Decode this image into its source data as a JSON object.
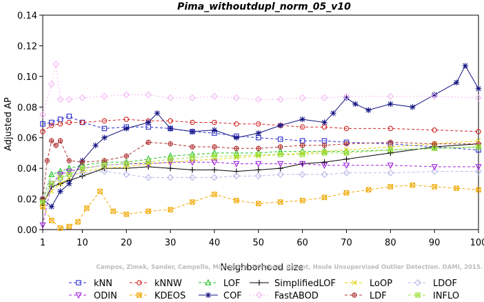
{
  "chart_data": {
    "type": "line",
    "title": "Pima_withoutdupl_norm_05_v10",
    "xlabel": "Neighborhood size",
    "ylabel": "Adjusted AP",
    "xlim": [
      1,
      100
    ],
    "ylim": [
      0.0,
      0.14
    ],
    "xticks": [
      1,
      10,
      20,
      30,
      40,
      50,
      60,
      70,
      80,
      90,
      100
    ],
    "yticks": [
      0.0,
      0.02,
      0.04,
      0.06,
      0.08,
      0.1,
      0.12,
      0.14
    ],
    "ytick_labels": [
      "0.00",
      "0.02",
      "0.04",
      "0.06",
      "0.08",
      "0.10",
      "0.12",
      "0.14"
    ],
    "grid": false,
    "legend_position": "bottom",
    "watermark": "Campos, Zimek, Sander, Campello, Micenkova, Schubert, Assent, Houle Unsupervised Outlier Detection. DAMI, 2015.",
    "series": [
      {
        "name": "kNN",
        "color": "#2a2ad0",
        "marker": "square",
        "x": [
          1,
          3,
          5,
          7,
          10,
          15,
          20,
          25,
          30,
          35,
          40,
          45,
          50,
          55,
          60,
          65,
          70,
          80,
          90,
          100
        ],
        "values": [
          0.069,
          0.07,
          0.072,
          0.074,
          0.07,
          0.066,
          0.067,
          0.067,
          0.066,
          0.064,
          0.063,
          0.061,
          0.06,
          0.059,
          0.058,
          0.058,
          0.057,
          0.056,
          0.054,
          0.052
        ]
      },
      {
        "name": "kNNW",
        "color": "#d02020",
        "marker": "circle",
        "x": [
          1,
          3,
          5,
          7,
          10,
          15,
          20,
          25,
          30,
          35,
          40,
          45,
          50,
          55,
          60,
          65,
          70,
          80,
          90,
          100
        ],
        "values": [
          0.064,
          0.068,
          0.069,
          0.07,
          0.07,
          0.071,
          0.072,
          0.071,
          0.071,
          0.07,
          0.07,
          0.069,
          0.069,
          0.068,
          0.067,
          0.067,
          0.066,
          0.066,
          0.065,
          0.064
        ]
      },
      {
        "name": "LOF",
        "color": "#20c020",
        "marker": "triangle-up",
        "x": [
          1,
          3,
          5,
          7,
          10,
          15,
          20,
          25,
          30,
          35,
          40,
          45,
          50,
          55,
          60,
          65,
          70,
          80,
          90,
          100
        ],
        "values": [
          0.02,
          0.036,
          0.038,
          0.04,
          0.042,
          0.044,
          0.044,
          0.046,
          0.048,
          0.049,
          0.05,
          0.05,
          0.05,
          0.051,
          0.051,
          0.051,
          0.051,
          0.052,
          0.053,
          0.054
        ]
      },
      {
        "name": "SimplifiedLOF",
        "color": "#000000",
        "marker": "plus",
        "x": [
          1,
          3,
          5,
          7,
          10,
          15,
          20,
          25,
          30,
          35,
          40,
          45,
          50,
          55,
          60,
          65,
          70,
          80,
          90,
          100
        ],
        "values": [
          0.016,
          0.028,
          0.03,
          0.032,
          0.035,
          0.04,
          0.04,
          0.041,
          0.04,
          0.039,
          0.039,
          0.038,
          0.039,
          0.04,
          0.043,
          0.044,
          0.046,
          0.05,
          0.054,
          0.056
        ]
      },
      {
        "name": "LoOP",
        "color": "#e0d000",
        "marker": "cross",
        "x": [
          1,
          3,
          5,
          7,
          10,
          15,
          20,
          25,
          30,
          35,
          40,
          45,
          50,
          55,
          60,
          65,
          70,
          80,
          90,
          100
        ],
        "values": [
          0.018,
          0.025,
          0.03,
          0.034,
          0.038,
          0.04,
          0.041,
          0.043,
          0.044,
          0.045,
          0.046,
          0.047,
          0.048,
          0.049,
          0.05,
          0.051,
          0.052,
          0.054,
          0.056,
          0.058
        ]
      },
      {
        "name": "LDOF",
        "color": "#b8b8e8",
        "marker": "diamond",
        "x": [
          1,
          3,
          5,
          7,
          10,
          15,
          20,
          25,
          30,
          35,
          40,
          45,
          50,
          55,
          60,
          65,
          70,
          80,
          90,
          100
        ],
        "values": [
          0.02,
          0.03,
          0.033,
          0.036,
          0.037,
          0.038,
          0.036,
          0.034,
          0.034,
          0.034,
          0.034,
          0.035,
          0.035,
          0.036,
          0.036,
          0.036,
          0.037,
          0.037,
          0.038,
          0.038
        ]
      },
      {
        "name": "ODIN",
        "color": "#a020e0",
        "marker": "triangle-down",
        "x": [
          1,
          3,
          5,
          7,
          10,
          15,
          20,
          25,
          30,
          35,
          40,
          45,
          50,
          55,
          60,
          65,
          70,
          80,
          90,
          100
        ],
        "values": [
          0.003,
          0.03,
          0.036,
          0.038,
          0.04,
          0.042,
          0.043,
          0.043,
          0.044,
          0.044,
          0.044,
          0.043,
          0.043,
          0.043,
          0.043,
          0.042,
          0.042,
          0.042,
          0.041,
          0.041
        ]
      },
      {
        "name": "KDEOS",
        "color": "#f0a800",
        "marker": "square-x",
        "x": [
          1,
          3,
          5,
          7,
          9,
          11,
          14,
          17,
          20,
          25,
          30,
          35,
          40,
          45,
          50,
          55,
          60,
          65,
          70,
          75,
          80,
          85,
          90,
          95,
          100
        ],
        "values": [
          0.015,
          0.006,
          0.001,
          0.002,
          0.005,
          0.014,
          0.025,
          0.012,
          0.01,
          0.012,
          0.013,
          0.018,
          0.023,
          0.019,
          0.017,
          0.018,
          0.019,
          0.021,
          0.024,
          0.026,
          0.028,
          0.029,
          0.028,
          0.027,
          0.026
        ]
      },
      {
        "name": "COF",
        "color": "#101080",
        "marker": "asterisk",
        "x": [
          1,
          3,
          5,
          7,
          10,
          13,
          15,
          20,
          25,
          27,
          30,
          35,
          40,
          45,
          50,
          55,
          60,
          65,
          67,
          70,
          72,
          75,
          80,
          85,
          90,
          95,
          97,
          100
        ],
        "values": [
          0.02,
          0.015,
          0.025,
          0.03,
          0.045,
          0.055,
          0.06,
          0.066,
          0.07,
          0.076,
          0.066,
          0.064,
          0.065,
          0.06,
          0.063,
          0.068,
          0.072,
          0.07,
          0.076,
          0.086,
          0.082,
          0.078,
          0.082,
          0.08,
          0.088,
          0.096,
          0.107,
          0.092
        ]
      },
      {
        "name": "FastABOD",
        "color": "#f4b4f4",
        "marker": "diamond-open",
        "x": [
          1,
          3,
          4,
          5,
          7,
          10,
          15,
          20,
          25,
          30,
          35,
          40,
          45,
          50,
          55,
          60,
          65,
          70,
          80,
          90,
          100
        ],
        "values": [
          0.075,
          0.095,
          0.108,
          0.085,
          0.085,
          0.086,
          0.087,
          0.088,
          0.088,
          0.086,
          0.086,
          0.087,
          0.086,
          0.085,
          0.085,
          0.086,
          0.086,
          0.087,
          0.087,
          0.087,
          0.086
        ]
      },
      {
        "name": "LDF",
        "color": "#b03030",
        "marker": "circle-plus",
        "x": [
          1,
          2,
          3,
          4,
          5,
          7,
          10,
          15,
          20,
          25,
          30,
          35,
          40,
          45,
          50,
          55,
          60,
          65,
          70,
          80,
          90,
          100
        ],
        "values": [
          0.02,
          0.045,
          0.058,
          0.055,
          0.058,
          0.045,
          0.044,
          0.045,
          0.048,
          0.057,
          0.056,
          0.054,
          0.054,
          0.053,
          0.053,
          0.054,
          0.055,
          0.055,
          0.056,
          0.057,
          0.056,
          0.056
        ]
      },
      {
        "name": "INFLO",
        "color": "#a0e040",
        "marker": "square-star",
        "x": [
          1,
          3,
          5,
          7,
          10,
          15,
          20,
          25,
          30,
          35,
          40,
          45,
          50,
          55,
          60,
          65,
          70,
          80,
          90,
          100
        ],
        "values": [
          0.018,
          0.03,
          0.034,
          0.036,
          0.04,
          0.042,
          0.043,
          0.044,
          0.046,
          0.047,
          0.048,
          0.048,
          0.049,
          0.049,
          0.049,
          0.05,
          0.05,
          0.052,
          0.053,
          0.054
        ]
      }
    ]
  }
}
